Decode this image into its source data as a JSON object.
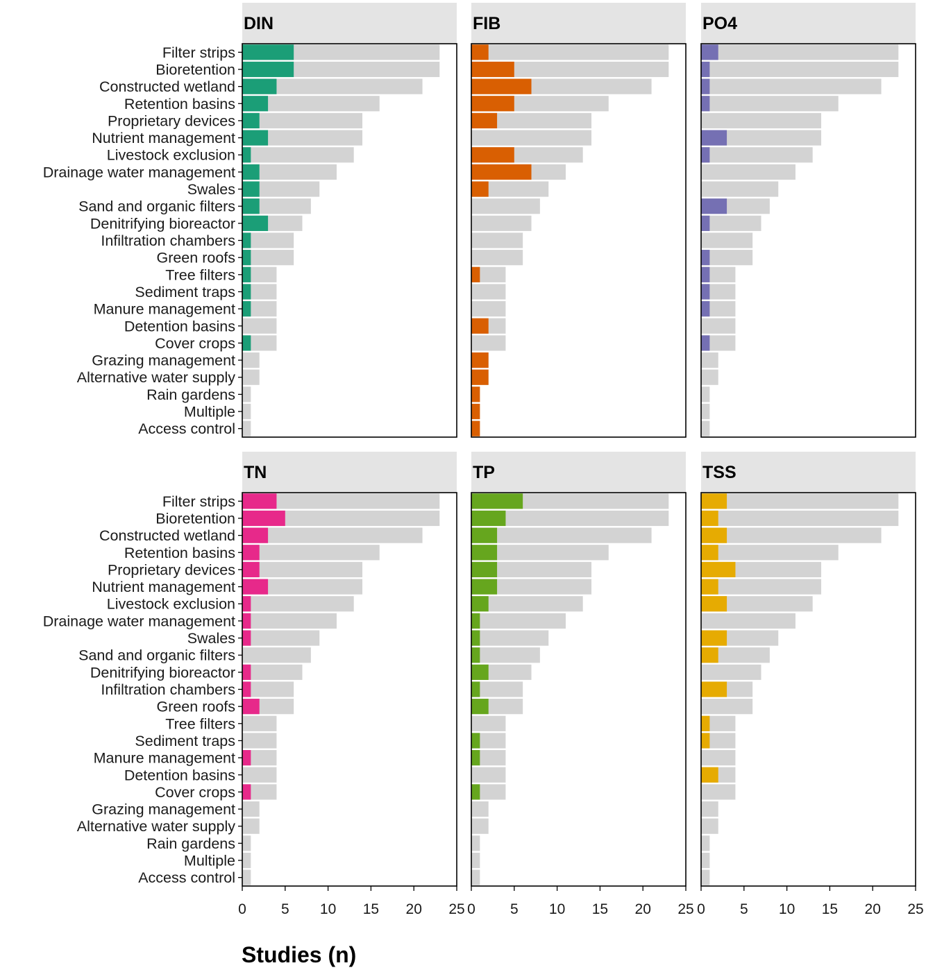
{
  "chart_data": {
    "type": "bar",
    "orientation": "horizontal",
    "xlabel": "Studies (n)",
    "xlim": [
      0,
      25
    ],
    "xticks": [
      0,
      5,
      10,
      15,
      20,
      25
    ],
    "categories": [
      "Filter strips",
      "Bioretention",
      "Constructed wetland",
      "Retention basins",
      "Proprietary devices",
      "Nutrient management",
      "Livestock exclusion",
      "Drainage water management",
      "Swales",
      "Sand and organic filters",
      "Denitrifying bioreactor",
      "Infiltration chambers",
      "Green roofs",
      "Tree filters",
      "Sediment traps",
      "Manure management",
      "Detention basins",
      "Cover crops",
      "Grazing management",
      "Alternative water supply",
      "Rain gardens",
      "Multiple",
      "Access control"
    ],
    "total_series": {
      "name": "Total studies",
      "color": "#d3d3d3",
      "values": [
        23,
        23,
        21,
        16,
        14,
        14,
        13,
        11,
        9,
        8,
        7,
        6,
        6,
        4,
        4,
        4,
        4,
        4,
        2,
        2,
        1,
        1,
        1
      ]
    },
    "facets": [
      {
        "title": "DIN",
        "color": "#1b9e77",
        "values": [
          6,
          6,
          4,
          3,
          2,
          3,
          1,
          2,
          2,
          2,
          3,
          1,
          1,
          1,
          1,
          1,
          0,
          1,
          0,
          0,
          0,
          0,
          0
        ]
      },
      {
        "title": "FIB",
        "color": "#d95f02",
        "values": [
          2,
          5,
          7,
          5,
          3,
          0,
          5,
          7,
          2,
          0,
          0,
          0,
          0,
          1,
          0,
          0,
          2,
          0,
          2,
          2,
          1,
          1,
          1
        ]
      },
      {
        "title": "PO4",
        "color": "#7570b3",
        "values": [
          2,
          1,
          1,
          1,
          0,
          3,
          1,
          0,
          0,
          3,
          1,
          0,
          1,
          1,
          1,
          1,
          0,
          1,
          0,
          0,
          0,
          0,
          0
        ]
      },
      {
        "title": "TN",
        "color": "#e7298a",
        "values": [
          4,
          5,
          3,
          2,
          2,
          3,
          1,
          1,
          1,
          0,
          1,
          1,
          2,
          0,
          0,
          1,
          0,
          1,
          0,
          0,
          0,
          0,
          0
        ]
      },
      {
        "title": "TP",
        "color": "#66a61e",
        "values": [
          6,
          4,
          3,
          3,
          3,
          3,
          2,
          1,
          1,
          1,
          2,
          1,
          2,
          0,
          1,
          1,
          0,
          1,
          0,
          0,
          0,
          0,
          0
        ]
      },
      {
        "title": "TSS",
        "color": "#e6ab02",
        "values": [
          3,
          2,
          3,
          2,
          4,
          2,
          3,
          0,
          3,
          2,
          0,
          3,
          0,
          1,
          1,
          0,
          2,
          0,
          0,
          0,
          0,
          0,
          0
        ]
      }
    ]
  }
}
